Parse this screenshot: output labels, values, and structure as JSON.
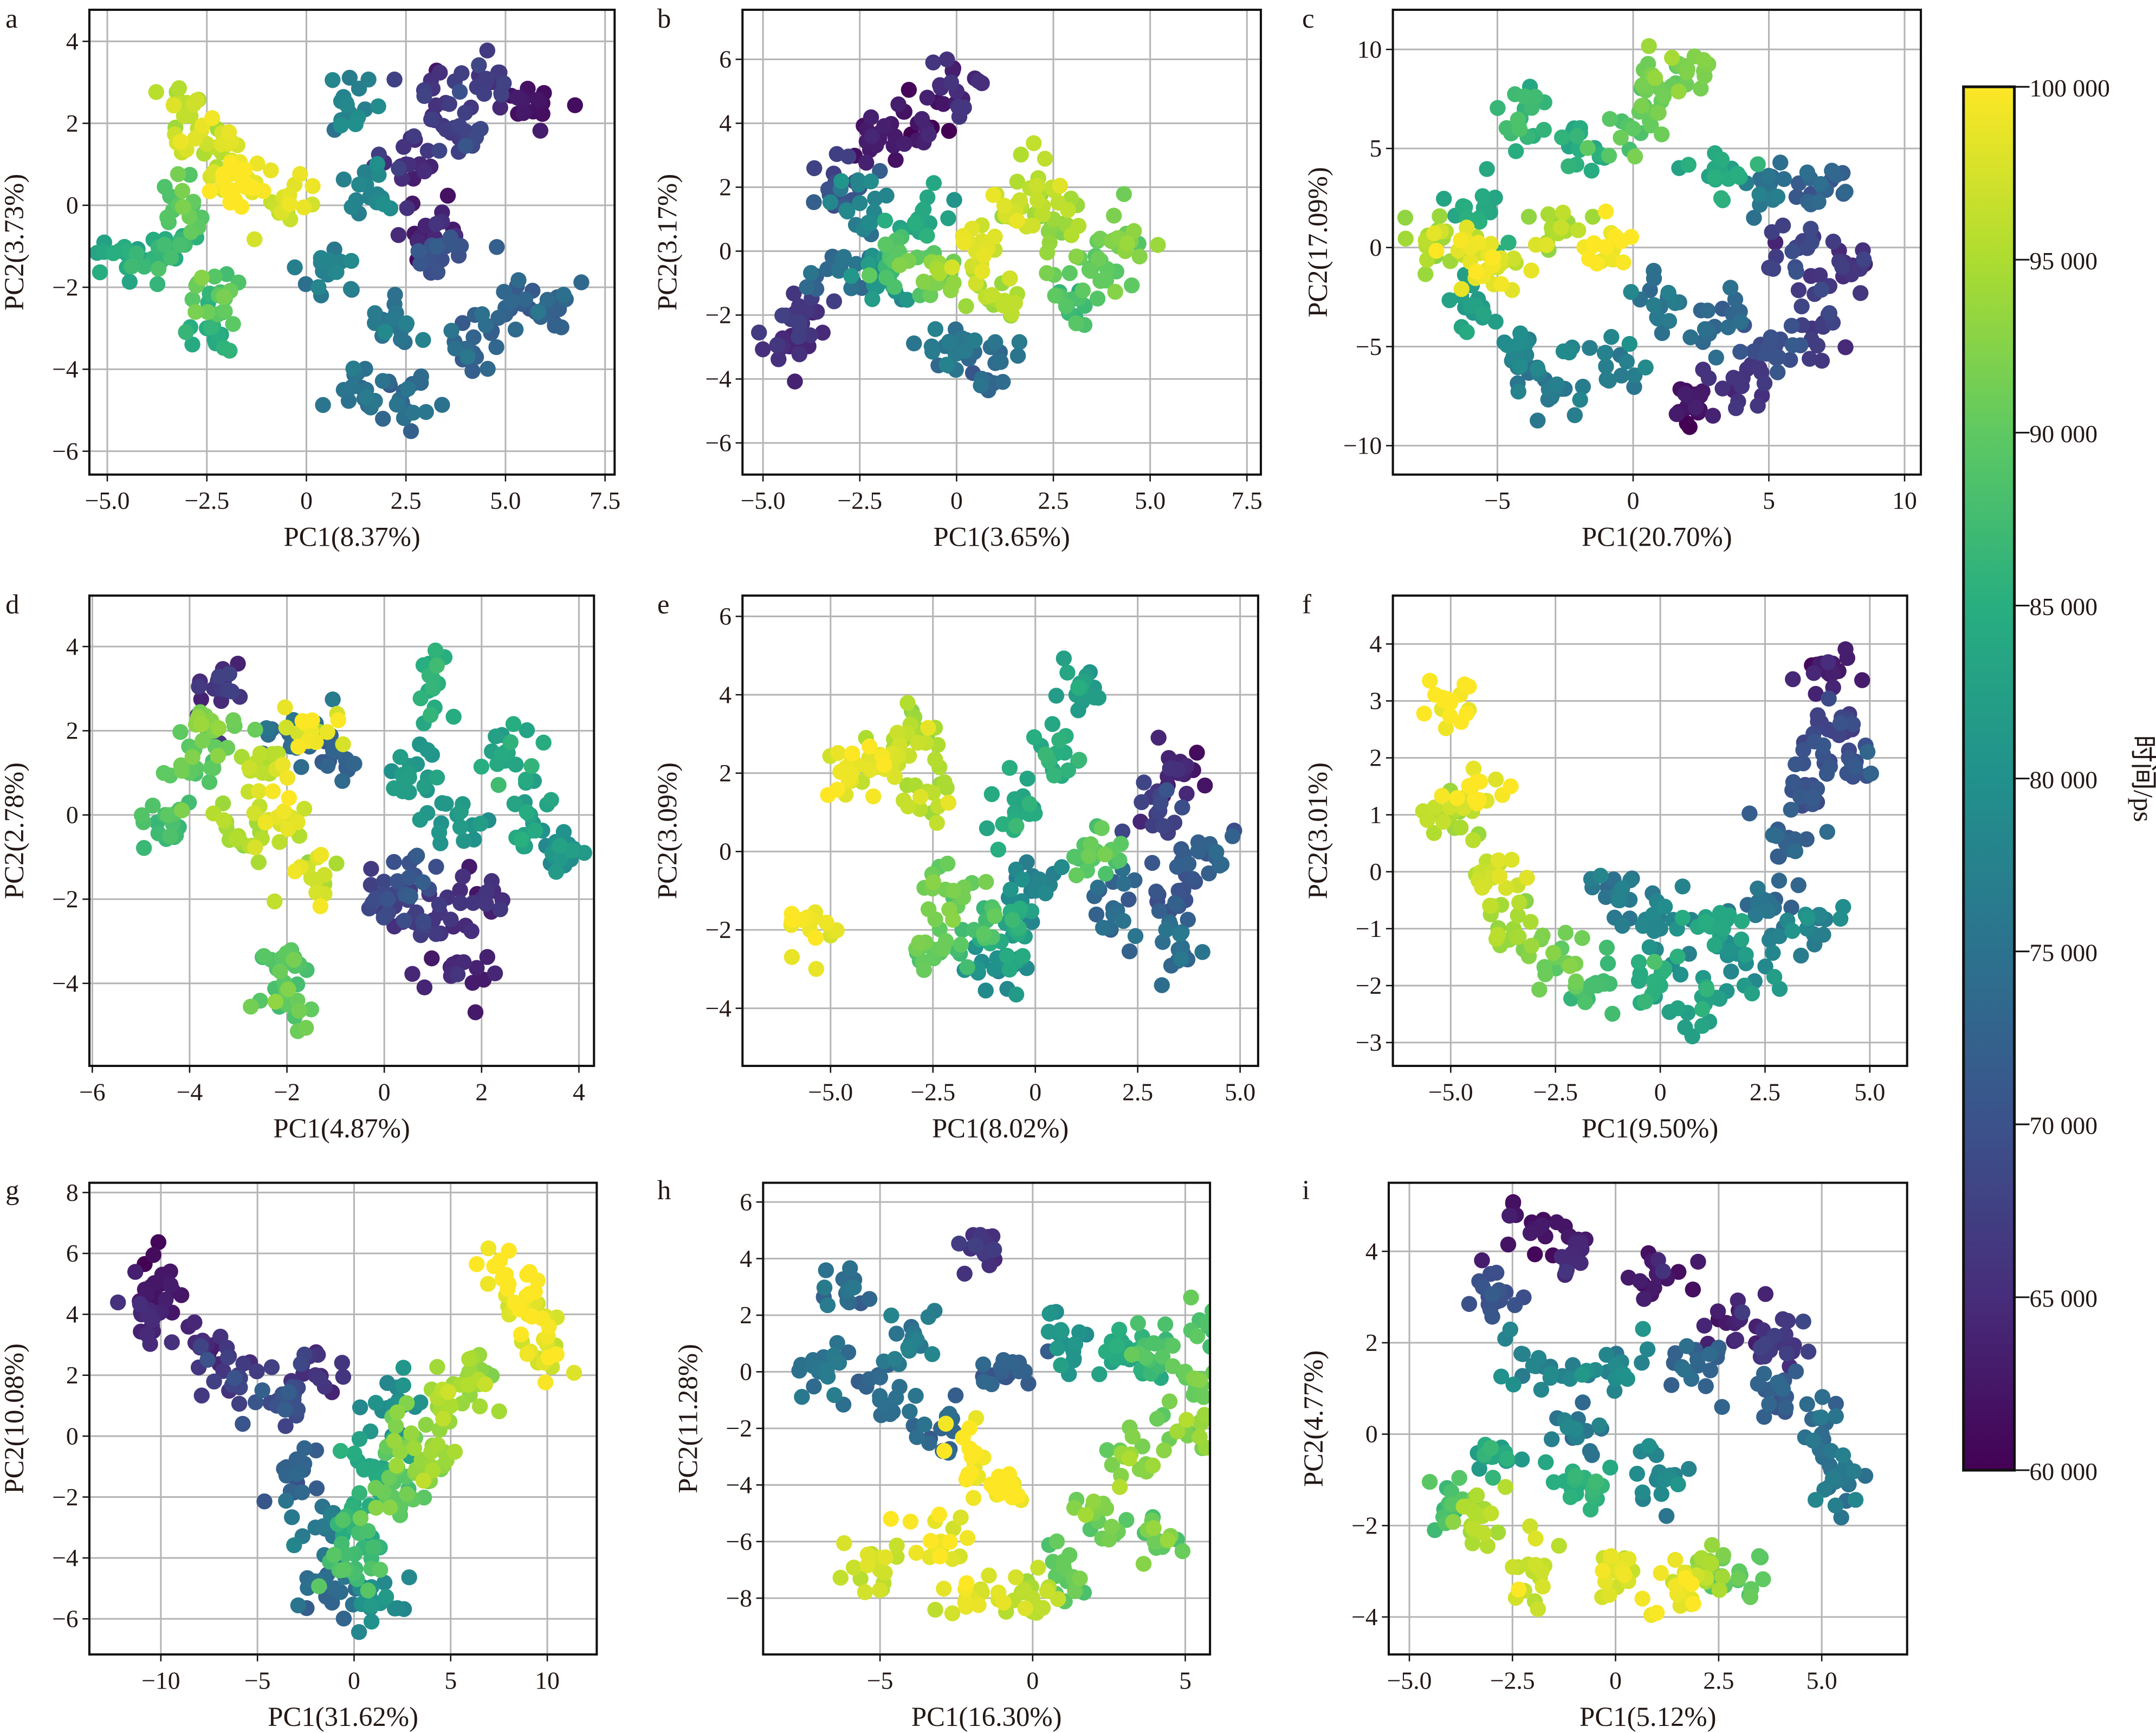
{
  "chart_data": [
    {
      "panel": "a",
      "type": "scatter",
      "xlabel": "PC1(8.37%)",
      "ylabel": "PC2(3.73%)",
      "xlim": [
        -5.45,
        7.74
      ],
      "ylim": [
        -6.57,
        4.77
      ],
      "xticks": [
        -5,
        -2.5,
        0,
        2.5,
        5,
        7.5
      ],
      "xticklabels": [
        "−5.0",
        "−2.5",
        "0",
        "2.5",
        "5.0",
        "7.5"
      ],
      "yticks": [
        -6,
        -4,
        -2,
        0,
        2,
        4
      ],
      "yticklabels": [
        "−6",
        "−4",
        "−2",
        "0",
        "2",
        "4"
      ],
      "points": [
        [
          -2,
          0.8,
          99000
        ],
        [
          -2.5,
          1.5,
          97000
        ],
        [
          -3.2,
          0,
          90000
        ],
        [
          -3.5,
          -1,
          86000
        ],
        [
          -2.2,
          -2.2,
          90000
        ],
        [
          -2.5,
          -3,
          85000
        ],
        [
          -1.5,
          0.5,
          100000
        ],
        [
          -0.5,
          0,
          98000
        ],
        [
          -4.5,
          -1.2,
          84000
        ],
        [
          -3,
          2.5,
          96000
        ],
        [
          3.5,
          2.5,
          66000
        ],
        [
          4,
          1.8,
          68000
        ],
        [
          2.5,
          1,
          65000
        ],
        [
          3,
          -0.5,
          64000
        ],
        [
          4.5,
          3,
          67000
        ],
        [
          5.5,
          2.3,
          62000
        ],
        [
          1.5,
          0.5,
          78000
        ],
        [
          1,
          2.5,
          78000
        ],
        [
          2,
          -3,
          76000
        ],
        [
          1.5,
          -4.5,
          75000
        ],
        [
          2.5,
          -5,
          74000
        ],
        [
          5,
          -2.5,
          73000
        ],
        [
          6,
          -2.5,
          72000
        ],
        [
          4,
          -3.5,
          73000
        ],
        [
          0.5,
          -1.5,
          77000
        ],
        [
          3.5,
          -1,
          70000
        ]
      ]
    },
    {
      "panel": "b",
      "type": "scatter",
      "xlabel": "PC1(3.65%)",
      "ylabel": "PC2(3.17%)",
      "xlim": [
        -5.53,
        7.86
      ],
      "ylim": [
        -6.99,
        7.55
      ],
      "xticks": [
        -5,
        -2.5,
        0,
        2.5,
        5,
        7.5
      ],
      "xticklabels": [
        "−5.0",
        "−2.5",
        "0",
        "2.5",
        "5.0",
        "7.5"
      ],
      "yticks": [
        -6,
        -4,
        -2,
        0,
        2,
        4,
        6
      ],
      "yticklabels": [
        "−6",
        "−4",
        "−2",
        "0",
        "2",
        "4",
        "6"
      ],
      "points": [
        [
          0.5,
          0,
          98000
        ],
        [
          1.5,
          1,
          97000
        ],
        [
          2,
          2,
          96000
        ],
        [
          -0.5,
          -1,
          92000
        ],
        [
          1,
          -1.5,
          95000
        ],
        [
          -1.5,
          0,
          88000
        ],
        [
          -2,
          -1,
          80000
        ],
        [
          -2.5,
          1.5,
          78000
        ],
        [
          -3,
          -0.5,
          74000
        ],
        [
          -4,
          -2,
          66000
        ],
        [
          -4.5,
          -3,
          65000
        ],
        [
          -2,
          3.5,
          63000
        ],
        [
          -1,
          4,
          62000
        ],
        [
          0,
          5,
          65000
        ],
        [
          3.5,
          -0.5,
          90000
        ],
        [
          4.5,
          0.3,
          92000
        ],
        [
          3,
          -1.5,
          88000
        ],
        [
          0,
          -3,
          76000
        ],
        [
          1,
          -3.5,
          74000
        ],
        [
          -3,
          2,
          70000
        ],
        [
          2.5,
          1,
          94000
        ],
        [
          -1,
          1,
          84000
        ]
      ]
    },
    {
      "panel": "c",
      "type": "scatter",
      "xlabel": "PC1(20.70%)",
      "ylabel": "PC2(17.09%)",
      "xlim": [
        -8.85,
        10.6
      ],
      "ylim": [
        -11.46,
        12.0
      ],
      "xticks": [
        -5,
        0,
        5,
        10
      ],
      "xticklabels": [
        "−5",
        "0",
        "5",
        "10"
      ],
      "yticks": [
        -10,
        -5,
        0,
        5,
        10
      ],
      "yticklabels": [
        "−10",
        "−5",
        "0",
        "5",
        "10"
      ],
      "points": [
        [
          -6,
          0,
          99000
        ],
        [
          -5,
          -1,
          97000
        ],
        [
          -3,
          1,
          95000
        ],
        [
          -1,
          0,
          100000
        ],
        [
          -7,
          0.5,
          94000
        ],
        [
          -5.5,
          2,
          84000
        ],
        [
          -6,
          -3,
          82000
        ],
        [
          -4,
          -5,
          78000
        ],
        [
          -3,
          -7,
          76000
        ],
        [
          -1,
          -6,
          77000
        ],
        [
          -2,
          5,
          85000
        ],
        [
          0,
          6,
          90000
        ],
        [
          1,
          8,
          91000
        ],
        [
          2,
          9,
          92000
        ],
        [
          3,
          4,
          84000
        ],
        [
          -4,
          7,
          86000
        ],
        [
          1,
          -3,
          75000
        ],
        [
          3,
          -4,
          73000
        ],
        [
          5,
          -5,
          70000
        ],
        [
          7,
          -4,
          67000
        ],
        [
          6,
          0,
          68000
        ],
        [
          5,
          3,
          75000
        ],
        [
          7,
          3,
          73000
        ],
        [
          2,
          -8,
          62000
        ],
        [
          8,
          -1,
          66000
        ],
        [
          4,
          -7,
          66000
        ]
      ]
    },
    {
      "panel": "d",
      "type": "scatter",
      "xlabel": "PC1(4.87%)",
      "ylabel": "PC2(2.78%)",
      "xlim": [
        -6.06,
        4.31
      ],
      "ylim": [
        -5.96,
        5.21
      ],
      "xticks": [
        -6,
        -4,
        -2,
        0,
        2,
        4
      ],
      "xticklabels": [
        "−6",
        "−4",
        "−2",
        "0",
        "2",
        "4"
      ],
      "yticks": [
        -4,
        -2,
        0,
        2,
        4
      ],
      "yticklabels": [
        "−4",
        "−2",
        "0",
        "2",
        "4"
      ],
      "points": [
        [
          -2,
          0,
          98000
        ],
        [
          -1.5,
          2,
          99000
        ],
        [
          -3,
          -0.5,
          95000
        ],
        [
          -2.5,
          1,
          96000
        ],
        [
          -4,
          1,
          90000
        ],
        [
          -4.5,
          0,
          88000
        ],
        [
          -2,
          -3.5,
          89000
        ],
        [
          -2,
          -4.5,
          90000
        ],
        [
          -1.5,
          -1.5,
          97000
        ],
        [
          -3.5,
          2,
          92000
        ],
        [
          0.5,
          1,
          82000
        ],
        [
          1.5,
          0,
          81000
        ],
        [
          2.5,
          1.5,
          84000
        ],
        [
          3,
          0,
          83000
        ],
        [
          1,
          3,
          85000
        ],
        [
          0.5,
          -1.5,
          70000
        ],
        [
          1,
          -2.5,
          66000
        ],
        [
          1.5,
          -3.5,
          64000
        ],
        [
          0,
          -2,
          68000
        ],
        [
          2,
          -2,
          65000
        ],
        [
          -1,
          1.5,
          72000
        ],
        [
          -3.5,
          3,
          66000
        ],
        [
          3.5,
          -1,
          80000
        ],
        [
          -1.8,
          2,
          74000
        ]
      ]
    },
    {
      "panel": "e",
      "type": "scatter",
      "xlabel": "PC1(8.02%)",
      "ylabel": "PC2(3.09%)",
      "xlim": [
        -7.15,
        5.44
      ],
      "ylim": [
        -5.47,
        6.53
      ],
      "xticks": [
        -5,
        -2.5,
        0,
        2.5,
        5
      ],
      "xticklabels": [
        "−5.0",
        "−2.5",
        "0",
        "2.5",
        "5.0"
      ],
      "yticks": [
        -4,
        -2,
        0,
        2,
        4,
        6
      ],
      "yticklabels": [
        "−4",
        "−2",
        "0",
        "2",
        "4",
        "6"
      ],
      "points": [
        [
          -3.5,
          2.5,
          98000
        ],
        [
          -4.5,
          2,
          99000
        ],
        [
          -2.5,
          1.5,
          96000
        ],
        [
          -3,
          3,
          95000
        ],
        [
          -5.5,
          -2,
          99000
        ],
        [
          -2,
          -1,
          92000
        ],
        [
          -2.5,
          -2.5,
          90000
        ],
        [
          -1,
          -3,
          80000
        ],
        [
          -1.5,
          -2,
          88000
        ],
        [
          -0.5,
          1,
          84000
        ],
        [
          0.5,
          2.5,
          85000
        ],
        [
          1,
          4,
          82000
        ],
        [
          0,
          -1,
          78000
        ],
        [
          3,
          1,
          68000
        ],
        [
          3.5,
          -1,
          70000
        ],
        [
          4,
          0,
          72000
        ],
        [
          3.5,
          -2.5,
          74000
        ],
        [
          3.5,
          2,
          64000
        ],
        [
          2,
          -1.5,
          74000
        ],
        [
          -0.5,
          -2,
          84000
        ],
        [
          1.5,
          0,
          90000
        ]
      ]
    },
    {
      "panel": "f",
      "type": "scatter",
      "xlabel": "PC1(9.50%)",
      "ylabel": "PC2(3.01%)",
      "xlim": [
        -6.38,
        5.89
      ],
      "ylim": [
        -3.41,
        4.85
      ],
      "xticks": [
        -5,
        -2.5,
        0,
        2.5,
        5
      ],
      "xticklabels": [
        "−5.0",
        "−2.5",
        "0",
        "2.5",
        "5.0"
      ],
      "yticks": [
        -3,
        -2,
        -1,
        0,
        1,
        2,
        3,
        4
      ],
      "yticklabels": [
        "−3",
        "−2",
        "−1",
        "0",
        "1",
        "2",
        "3",
        "4"
      ],
      "points": [
        [
          -5,
          3,
          100000
        ],
        [
          -4.5,
          1.5,
          99000
        ],
        [
          -4,
          0,
          97000
        ],
        [
          -3.5,
          -1,
          94000
        ],
        [
          -2.5,
          -1.5,
          91000
        ],
        [
          -1.5,
          -2,
          88000
        ],
        [
          0,
          -2,
          85000
        ],
        [
          1,
          -2.2,
          83000
        ],
        [
          2,
          -1.5,
          80000
        ],
        [
          0,
          -1,
          78000
        ],
        [
          -1,
          -0.5,
          76000
        ],
        [
          2.5,
          -0.5,
          75000
        ],
        [
          3,
          0.5,
          72000
        ],
        [
          3.5,
          1.5,
          70000
        ],
        [
          4,
          2.5,
          68000
        ],
        [
          4,
          3.5,
          63000
        ],
        [
          4.5,
          2,
          70000
        ],
        [
          -5,
          1,
          95000
        ],
        [
          1.5,
          -1,
          84000
        ],
        [
          3.5,
          -1,
          78000
        ]
      ]
    },
    {
      "panel": "g",
      "type": "scatter",
      "xlabel": "PC1(31.62%)",
      "ylabel": "PC2(10.08%)",
      "xlim": [
        -13.7,
        12.56
      ],
      "ylim": [
        -7.17,
        8.32
      ],
      "xticks": [
        -10,
        -5,
        0,
        5,
        10
      ],
      "xticklabels": [
        "−10",
        "−5",
        "0",
        "5",
        "10"
      ],
      "yticks": [
        -6,
        -4,
        -2,
        0,
        2,
        4,
        6,
        8
      ],
      "yticklabels": [
        "−6",
        "−4",
        "−2",
        "0",
        "2",
        "4",
        "6",
        "8"
      ],
      "points": [
        [
          -10,
          5,
          62000
        ],
        [
          -11,
          4,
          64000
        ],
        [
          -8,
          3,
          65000
        ],
        [
          -6,
          2,
          67000
        ],
        [
          -4,
          1,
          70000
        ],
        [
          -3,
          -1,
          72000
        ],
        [
          -2,
          -3,
          76000
        ],
        [
          -1,
          -5,
          74000
        ],
        [
          0,
          -3,
          86000
        ],
        [
          1,
          -1,
          84000
        ],
        [
          2,
          -2,
          90000
        ],
        [
          3,
          0,
          92000
        ],
        [
          4,
          -1,
          94000
        ],
        [
          5,
          1,
          95000
        ],
        [
          6,
          2,
          94000
        ],
        [
          8,
          5,
          100000
        ],
        [
          9,
          4,
          99000
        ],
        [
          10,
          3,
          98000
        ],
        [
          0,
          -4.5,
          88000
        ],
        [
          2,
          1,
          80000
        ],
        [
          -2,
          2,
          66000
        ],
        [
          1,
          -5.5,
          80000
        ]
      ]
    },
    {
      "panel": "h",
      "type": "scatter",
      "xlabel": "PC1(16.30%)",
      "ylabel": "PC2(11.28%)",
      "xlim": [
        -8.83,
        5.81
      ],
      "ylim": [
        -9.99,
        6.68
      ],
      "xticks": [
        -5,
        0,
        5
      ],
      "xticklabels": [
        "−5",
        "0",
        "5"
      ],
      "yticks": [
        -8,
        -6,
        -4,
        -2,
        0,
        2,
        4,
        6
      ],
      "yticklabels": [
        "−8",
        "−6",
        "−4",
        "−2",
        "0",
        "2",
        "4",
        "6"
      ],
      "points": [
        [
          -1.5,
          4.5,
          66000
        ],
        [
          -6,
          3,
          74000
        ],
        [
          -7,
          0,
          75000
        ],
        [
          -5,
          -1,
          74000
        ],
        [
          -4,
          1,
          76000
        ],
        [
          -3,
          -2,
          73000
        ],
        [
          -1,
          0,
          72000
        ],
        [
          1,
          1,
          80000
        ],
        [
          3,
          0.5,
          84000
        ],
        [
          4,
          1,
          88000
        ],
        [
          5,
          0,
          90000
        ],
        [
          5,
          -2,
          92000
        ],
        [
          3,
          -3,
          93000
        ],
        [
          2,
          -5,
          92000
        ],
        [
          1,
          -7,
          90000
        ],
        [
          4,
          -6,
          91000
        ],
        [
          -3,
          -6,
          99000
        ],
        [
          -2,
          -8,
          98000
        ],
        [
          -5,
          -7,
          97000
        ],
        [
          -1,
          -4,
          100000
        ],
        [
          0,
          -8,
          96000
        ],
        [
          -2,
          -3,
          100000
        ],
        [
          6,
          1.5,
          88000
        ]
      ]
    },
    {
      "panel": "i",
      "type": "scatter",
      "xlabel": "PC1(5.12%)",
      "ylabel": "PC2(4.77%)",
      "xlim": [
        -5.5,
        7.07
      ],
      "ylim": [
        -4.82,
        5.5
      ],
      "xticks": [
        -5,
        -2.5,
        0,
        2.5,
        5
      ],
      "xticklabels": [
        "−5.0",
        "−2.5",
        "0",
        "2.5",
        "5.0"
      ],
      "yticks": [
        -4,
        -2,
        0,
        2,
        4
      ],
      "yticklabels": [
        "−4",
        "−2",
        "0",
        "2",
        "4"
      ],
      "points": [
        [
          -2,
          4.5,
          62000
        ],
        [
          -1,
          4,
          64000
        ],
        [
          1,
          3.5,
          63000
        ],
        [
          3,
          2.5,
          64000
        ],
        [
          4,
          2,
          66000
        ],
        [
          -3,
          3,
          70000
        ],
        [
          -2,
          1.5,
          78000
        ],
        [
          0,
          1.5,
          79000
        ],
        [
          2,
          1.5,
          73000
        ],
        [
          4,
          1,
          72000
        ],
        [
          5,
          0,
          74000
        ],
        [
          5.5,
          -1,
          76000
        ],
        [
          -1,
          0,
          76000
        ],
        [
          -3,
          -0.5,
          84000
        ],
        [
          -4,
          -1.5,
          88000
        ],
        [
          -3.5,
          -2,
          95000
        ],
        [
          -2,
          -3,
          96000
        ],
        [
          0,
          -3,
          98000
        ],
        [
          1.5,
          -3.5,
          99000
        ],
        [
          2,
          -3,
          94000
        ],
        [
          3,
          -3,
          90000
        ],
        [
          -1,
          -1,
          86000
        ],
        [
          1,
          -1,
          78000
        ]
      ]
    }
  ],
  "colorbar": {
    "label": "时间/ps",
    "range": [
      60000,
      100000
    ],
    "colormap": "viridis",
    "ticks": [
      100000,
      95000,
      90000,
      85000,
      80000,
      75000,
      70000,
      65000,
      60000
    ],
    "ticklabels": [
      "100 000",
      "95 000",
      "90 000",
      "85 000",
      "80 000",
      "75 000",
      "70 000",
      "65 000",
      "60 000"
    ]
  },
  "colors": {
    "grid": "#b5b5b5",
    "text": "#231815",
    "frame": "#111111"
  }
}
